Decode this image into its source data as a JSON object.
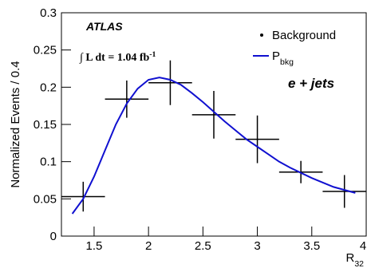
{
  "chart_data": {
    "type": "scatter",
    "annotations": [
      "ATLAS",
      "∫ L dt = 1.04 fb^-1",
      "e + jets"
    ],
    "x_label": "R_32",
    "y_label": "Normalized Events / 0.4",
    "xlim": [
      1.2,
      4
    ],
    "ylim": [
      0,
      0.3
    ],
    "xticks": [
      1.5,
      2,
      2.5,
      3,
      3.5,
      4
    ],
    "yticks": [
      0,
      0.05,
      0.1,
      0.15,
      0.2,
      0.25,
      0.3
    ],
    "legend": "upper right",
    "series": [
      {
        "name": "Background",
        "color": "#000000",
        "x": [
          1.4,
          1.8,
          2.2,
          2.6,
          3.0,
          3.4,
          3.8
        ],
        "values": [
          0.053,
          0.184,
          0.206,
          0.163,
          0.13,
          0.086,
          0.06
        ],
        "xerr": [
          0.2,
          0.2,
          0.2,
          0.2,
          0.2,
          0.2,
          0.2
        ],
        "yerr": [
          0.02,
          0.025,
          0.03,
          0.032,
          0.032,
          0.015,
          0.022
        ]
      },
      {
        "name": "P_bkg",
        "color": "#1010d0",
        "type": "line",
        "x": [
          1.3,
          1.4,
          1.5,
          1.6,
          1.7,
          1.8,
          1.9,
          2.0,
          2.1,
          2.2,
          2.3,
          2.4,
          2.5,
          2.6,
          2.7,
          2.8,
          2.9,
          3.0,
          3.1,
          3.2,
          3.3,
          3.4,
          3.5,
          3.6,
          3.7,
          3.8,
          3.9
        ],
        "values": [
          0.03,
          0.05,
          0.08,
          0.115,
          0.15,
          0.178,
          0.198,
          0.21,
          0.213,
          0.21,
          0.203,
          0.192,
          0.18,
          0.167,
          0.154,
          0.142,
          0.13,
          0.12,
          0.11,
          0.1,
          0.092,
          0.085,
          0.078,
          0.072,
          0.066,
          0.062,
          0.058
        ]
      }
    ]
  }
}
